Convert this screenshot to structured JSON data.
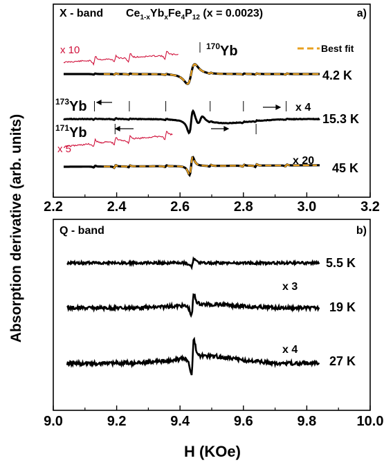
{
  "figure": {
    "ylabel": "Absorption derivative (arb. units)",
    "xlabel": "H (KOe)"
  },
  "chart_data": [
    {
      "type": "line",
      "panel": "a)",
      "title": "X - band",
      "formula": {
        "base": "Ce",
        "sub1": "1-x",
        "mid": "Yb",
        "sub2": "x",
        "tail": "Fe",
        "sub3": "4",
        "tail2": "P",
        "sub4": "12",
        "rest": " (x = 0.0023)"
      },
      "xlim": [
        2.2,
        3.2
      ],
      "ticks": [
        "2.2",
        "2.4",
        "2.6",
        "2.8",
        "3.0",
        "3.2"
      ],
      "tick_values": [
        2.2,
        2.4,
        2.6,
        2.8,
        3.0,
        3.2
      ],
      "legend": "Best fit",
      "fit_color": "#e8a020",
      "zoom_color": "#d0103a",
      "series": [
        {
          "label": "4.2 K",
          "multiplier": "",
          "zoom": "x 10"
        },
        {
          "label": "15.3 K",
          "multiplier": "x 4",
          "zoom": ""
        },
        {
          "label": "45 K",
          "multiplier": "x 20",
          "zoom": "x 5"
        }
      ],
      "isotope_labels": {
        "yb170": {
          "sup": "170",
          "base": "Yb"
        },
        "yb173": {
          "sup": "173",
          "base": "Yb"
        },
        "yb171": {
          "sup": "171",
          "base": "Yb"
        }
      },
      "hyperfine_lines_173": [
        2.33,
        2.44,
        2.555,
        2.695,
        2.8,
        2.935
      ],
      "hyperfine_lines_171": [
        2.395,
        2.84
      ],
      "main_line": 2.635
    },
    {
      "type": "line",
      "panel": "b)",
      "title": "Q - band",
      "xlim": [
        9.0,
        10.0
      ],
      "ticks": [
        "9.0",
        "9.2",
        "9.4",
        "9.6",
        "9.8",
        "10.0"
      ],
      "tick_values": [
        9.0,
        9.2,
        9.4,
        9.6,
        9.8,
        10.0
      ],
      "series": [
        {
          "label": "5.5 K",
          "multiplier": ""
        },
        {
          "label": "19 K",
          "multiplier": "x 3"
        },
        {
          "label": "27 K",
          "multiplier": "x 4"
        }
      ],
      "main_line": 9.44
    }
  ]
}
